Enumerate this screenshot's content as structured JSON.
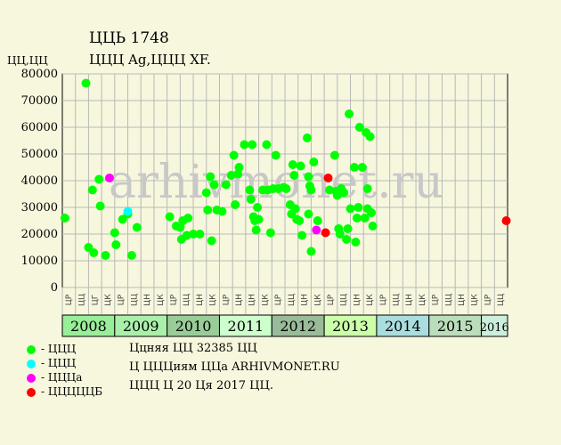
{
  "header": {
    "title_line1": "ЦЦЬ 1748",
    "title_line2": "ЦЦЦ Ag,ЦЦЦ XF.",
    "y_unit_label": "ЦЦ,ЦЦ"
  },
  "watermark": "arhivmonet.ru",
  "legend": [
    {
      "label": "- ЦЦЦ",
      "color": "#00ff00"
    },
    {
      "label": "- ЦЦЦ",
      "color": "#00ffff"
    },
    {
      "label": "- ЦЦЦа",
      "color": "#ff00ff"
    },
    {
      "label": "- ЦЦЦЦЦБ",
      "color": "#ff0000"
    }
  ],
  "notes": [
    "Ццняя ЦЦ 32385 ЦЦ",
    "Ц ЦЦЦиям ЦЦа ARHIVMONET.RU",
    "ЦЦЦ Ц 20 Ця 2017 ЦЦ."
  ],
  "chart_data": {
    "type": "scatter",
    "ylim": [
      0,
      80000
    ],
    "yticks": [
      0,
      10000,
      20000,
      30000,
      40000,
      50000,
      60000,
      70000,
      80000
    ],
    "ytick_labels": [
      "0",
      "10000",
      "20000",
      "30000",
      "40000",
      "50000",
      "60000",
      "70000",
      "80000"
    ],
    "grid": true,
    "x_unit": "quarter index (0 = 2008 Q1)",
    "quarter_labels": [
      "ЦР",
      "ЦЦ",
      "ЦГ",
      "ЦК",
      "ЦР",
      "ЦЦ",
      "ЦН",
      "ЦК",
      "ЦР",
      "ЦЦ",
      "ЦН",
      "ЦК",
      "ЦР",
      "ЦН",
      "ЦН",
      "ЦК",
      "ЦР",
      "ЦЦ",
      "ЦН",
      "ЦК",
      "ЦР",
      "ЦЦ",
      "ЦН",
      "ЦК",
      "ЦР",
      "ЦЦ",
      "ЦН",
      "ЦК",
      "ЦР",
      "ЦЦ",
      "ЦН",
      "ЦК",
      "ЦР",
      "ЦЦ"
    ],
    "years": [
      {
        "label": "2008",
        "start": 0,
        "quarters": 4,
        "color": "#99ee99"
      },
      {
        "label": "2009",
        "start": 4,
        "quarters": 4,
        "color": "#aaf0aa"
      },
      {
        "label": "2010",
        "start": 8,
        "quarters": 4,
        "color": "#99cc99"
      },
      {
        "label": "2011",
        "start": 12,
        "quarters": 4,
        "color": "#ccffcc"
      },
      {
        "label": "2012",
        "start": 16,
        "quarters": 4,
        "color": "#99bb99"
      },
      {
        "label": "2013",
        "start": 20,
        "quarters": 4,
        "color": "#ccffaa"
      },
      {
        "label": "2014",
        "start": 24,
        "quarters": 4,
        "color": "#aadddd"
      },
      {
        "label": "2015",
        "start": 28,
        "quarters": 4,
        "color": "#bbddbb"
      },
      {
        "label": "2016",
        "start": 32,
        "quarters": 2,
        "color": "#cceedd"
      }
    ],
    "series": [
      {
        "color": "#00ff00",
        "points": [
          [
            0.2,
            26000
          ],
          [
            1.8,
            76500
          ],
          [
            2.0,
            15000
          ],
          [
            2.4,
            13000
          ],
          [
            2.3,
            36500
          ],
          [
            2.8,
            40500
          ],
          [
            2.9,
            30500
          ],
          [
            3.3,
            12000
          ],
          [
            4.0,
            20500
          ],
          [
            4.1,
            16000
          ],
          [
            4.6,
            25500
          ],
          [
            5.0,
            27500
          ],
          [
            5.3,
            12000
          ],
          [
            5.7,
            22500
          ],
          [
            8.2,
            26500
          ],
          [
            8.7,
            23000
          ],
          [
            9.0,
            22500
          ],
          [
            9.1,
            18000
          ],
          [
            9.2,
            25000
          ],
          [
            9.5,
            19500
          ],
          [
            9.6,
            26000
          ],
          [
            10.0,
            20000
          ],
          [
            10.5,
            20000
          ],
          [
            11.0,
            35500
          ],
          [
            11.1,
            29000
          ],
          [
            11.3,
            41500
          ],
          [
            11.4,
            17500
          ],
          [
            11.6,
            38500
          ],
          [
            11.8,
            29000
          ],
          [
            12.2,
            28500
          ],
          [
            12.5,
            38500
          ],
          [
            12.9,
            42000
          ],
          [
            13.1,
            49500
          ],
          [
            13.2,
            31000
          ],
          [
            13.4,
            42500
          ],
          [
            13.5,
            45000
          ],
          [
            13.9,
            53500
          ],
          [
            14.3,
            36500
          ],
          [
            14.4,
            33000
          ],
          [
            14.5,
            53500
          ],
          [
            14.6,
            26500
          ],
          [
            14.7,
            25000
          ],
          [
            14.8,
            21500
          ],
          [
            14.9,
            30000
          ],
          [
            15.0,
            25500
          ],
          [
            15.3,
            36500
          ],
          [
            15.6,
            53500
          ],
          [
            15.7,
            36500
          ],
          [
            15.9,
            20500
          ],
          [
            16.1,
            37000
          ],
          [
            16.3,
            49500
          ],
          [
            16.5,
            37000
          ],
          [
            16.9,
            37500
          ],
          [
            17.1,
            37000
          ],
          [
            17.4,
            31000
          ],
          [
            17.5,
            27500
          ],
          [
            17.6,
            46000
          ],
          [
            17.7,
            42000
          ],
          [
            17.8,
            29500
          ],
          [
            17.9,
            25500
          ],
          [
            18.1,
            25000
          ],
          [
            18.2,
            45500
          ],
          [
            18.3,
            19500
          ],
          [
            18.7,
            56000
          ],
          [
            18.8,
            41500
          ],
          [
            18.9,
            38000
          ],
          [
            19.0,
            36500
          ],
          [
            18.8,
            27500
          ],
          [
            19.0,
            13500
          ],
          [
            19.2,
            47000
          ],
          [
            19.5,
            25000
          ],
          [
            20.4,
            36500
          ],
          [
            20.8,
            49500
          ],
          [
            20.9,
            36000
          ],
          [
            21.0,
            34500
          ],
          [
            21.1,
            22000
          ],
          [
            21.2,
            20000
          ],
          [
            21.3,
            37000
          ],
          [
            21.5,
            35500
          ],
          [
            21.7,
            18000
          ],
          [
            21.8,
            22000
          ],
          [
            21.9,
            65000
          ],
          [
            22.0,
            29500
          ],
          [
            22.3,
            45000
          ],
          [
            22.4,
            17000
          ],
          [
            22.5,
            26000
          ],
          [
            22.6,
            30000
          ],
          [
            22.7,
            60000
          ],
          [
            22.9,
            45000
          ],
          [
            23.1,
            26000
          ],
          [
            23.2,
            58000
          ],
          [
            23.3,
            29500
          ],
          [
            23.3,
            37000
          ],
          [
            23.5,
            56500
          ],
          [
            23.6,
            28000
          ],
          [
            23.7,
            23000
          ]
        ]
      },
      {
        "color": "#00ffff",
        "points": [
          [
            5.0,
            28500
          ]
        ]
      },
      {
        "color": "#ff00ff",
        "points": [
          [
            3.6,
            41000
          ],
          [
            19.4,
            21500
          ]
        ]
      },
      {
        "color": "#ff0000",
        "points": [
          [
            20.3,
            41000
          ],
          [
            20.1,
            20500
          ],
          [
            33.9,
            25000
          ]
        ]
      }
    ]
  }
}
